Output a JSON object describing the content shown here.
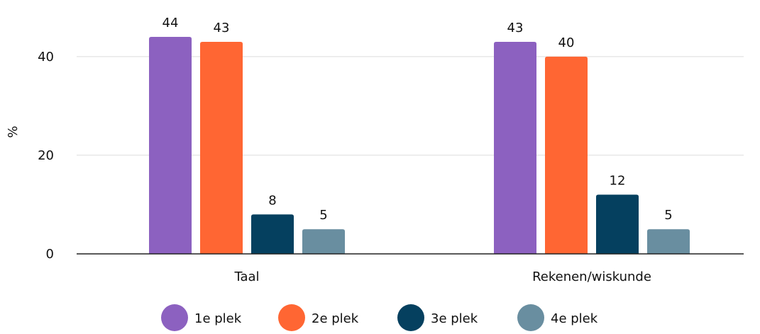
{
  "chart_data": {
    "type": "bar",
    "categories": [
      "Taal",
      "Rekenen/wiskunde"
    ],
    "series": [
      {
        "name": "1e plek",
        "values": [
          44,
          43
        ],
        "color": "#8c61c0"
      },
      {
        "name": "2e plek",
        "values": [
          43,
          40
        ],
        "color": "#ff6633"
      },
      {
        "name": "3e plek",
        "values": [
          8,
          12
        ],
        "color": "#05405f"
      },
      {
        "name": "4e plek",
        "values": [
          5,
          5
        ],
        "color": "#698ea0"
      }
    ],
    "title": "",
    "xlabel": "",
    "ylabel": "%",
    "ylim": [
      0,
      44
    ],
    "yticks": [
      0,
      20,
      40
    ],
    "grid": true,
    "legend_position": "bottom"
  }
}
